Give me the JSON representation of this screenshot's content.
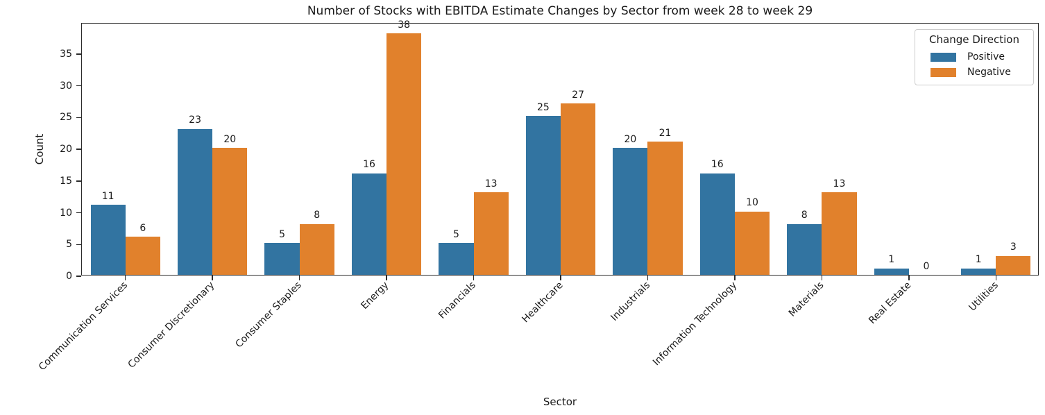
{
  "chart_data": {
    "type": "bar",
    "title": "Number of Stocks with EBITDA Estimate Changes by Sector from week 28 to week 29",
    "xlabel": "Sector",
    "ylabel": "Count",
    "categories": [
      "Communication Services",
      "Consumer Discretionary",
      "Consumer Staples",
      "Energy",
      "Financials",
      "Healthcare",
      "Industrials",
      "Information Technology",
      "Materials",
      "Real Estate",
      "Utilities"
    ],
    "series": [
      {
        "name": "Positive",
        "color": "#3274a1",
        "values": [
          11,
          23,
          5,
          16,
          5,
          25,
          20,
          16,
          8,
          1,
          1
        ]
      },
      {
        "name": "Negative",
        "color": "#e1812c",
        "values": [
          6,
          20,
          8,
          38,
          13,
          27,
          21,
          10,
          13,
          0,
          3
        ]
      }
    ],
    "ylim": [
      0,
      39.8
    ],
    "yticks": [
      0,
      5,
      10,
      15,
      20,
      25,
      30,
      35
    ],
    "bar_labels": true,
    "grid": false,
    "legend": {
      "title": "Change Direction",
      "position": "upper right",
      "entries": [
        "Positive",
        "Negative"
      ]
    }
  }
}
